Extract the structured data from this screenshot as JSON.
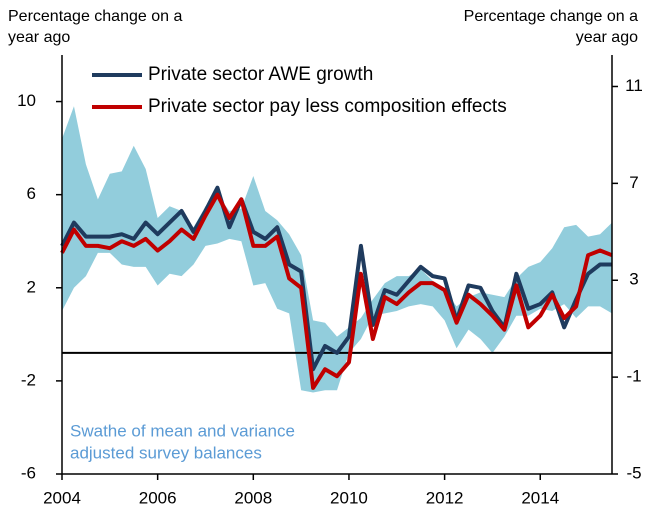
{
  "chart_data": {
    "type": "line",
    "ylabel": [
      "Percentage change on a",
      "year ago"
    ],
    "y2label": [
      "Percentage change on a",
      "year ago"
    ],
    "annotation": [
      "Swathe of mean and variance",
      "adjusted survey balances"
    ],
    "x": [
      2004,
      2004.25,
      2004.5,
      2004.75,
      2005,
      2005.25,
      2005.5,
      2005.75,
      2006,
      2006.25,
      2006.5,
      2006.75,
      2007,
      2007.25,
      2007.5,
      2007.75,
      2008,
      2008.25,
      2008.5,
      2008.75,
      2009,
      2009.25,
      2009.5,
      2009.75,
      2010,
      2010.25,
      2010.5,
      2010.75,
      2011,
      2011.25,
      2011.5,
      2011.75,
      2012,
      2012.25,
      2012.5,
      2012.75,
      2013,
      2013.25,
      2013.5,
      2013.75,
      2014,
      2014.25,
      2014.5,
      2014.75,
      2015,
      2015.25,
      2015.5
    ],
    "band": {
      "color": "#92cddc",
      "high": [
        8.4,
        9.8,
        7.3,
        5.8,
        6.9,
        7.0,
        8.1,
        7.1,
        5.0,
        5.5,
        5.3,
        4.6,
        5.5,
        6.0,
        5.3,
        5.4,
        6.8,
        5.3,
        4.9,
        4.3,
        3.4,
        0.6,
        0.5,
        -0.1,
        0.3,
        0.7,
        1.5,
        2.2,
        2.5,
        2.5,
        2.8,
        2.3,
        1.9,
        1.2,
        1.6,
        1.8,
        1.7,
        1.6,
        2.4,
        2.9,
        3.1,
        3.7,
        4.6,
        4.7,
        4.2,
        4.3,
        4.8
      ],
      "low": [
        1.0,
        2.0,
        2.5,
        3.5,
        3.5,
        3.0,
        2.9,
        2.9,
        2.1,
        2.6,
        2.5,
        3.0,
        3.8,
        3.9,
        4.1,
        4.0,
        2.1,
        2.2,
        1.1,
        0.9,
        -2.4,
        -2.5,
        -2.4,
        -2.4,
        -0.8,
        -0.2,
        0.8,
        0.9,
        1.0,
        1.2,
        1.3,
        1.2,
        0.6,
        -0.6,
        0.2,
        -0.2,
        -0.8,
        -0.1,
        0.8,
        0.8,
        1.1,
        1.0,
        1.3,
        0.7,
        1.2,
        1.2,
        0.9
      ]
    },
    "series": [
      {
        "name": "Private sector AWE growth",
        "color": "#1f3b5e",
        "values": [
          3.8,
          4.8,
          4.2,
          4.2,
          4.2,
          4.3,
          4.1,
          4.8,
          4.3,
          4.8,
          5.3,
          4.4,
          5.3,
          6.3,
          4.6,
          5.8,
          4.4,
          4.1,
          4.6,
          3.0,
          2.7,
          -1.5,
          -0.5,
          -0.8,
          -0.1,
          3.8,
          0.4,
          1.9,
          1.7,
          2.3,
          2.9,
          2.5,
          2.4,
          0.6,
          2.1,
          2.0,
          1.0,
          0.3,
          2.6,
          1.1,
          1.3,
          1.8,
          0.3,
          1.5,
          2.6,
          3.0,
          3.0
        ]
      },
      {
        "name": "Private sector pay less composition effects",
        "color": "#c00000",
        "values": [
          3.5,
          4.5,
          3.8,
          3.8,
          3.7,
          4.0,
          3.8,
          4.1,
          3.6,
          4.0,
          4.5,
          4.1,
          5.1,
          6.0,
          5.0,
          5.8,
          3.8,
          3.8,
          4.2,
          2.4,
          2.0,
          -2.3,
          -1.5,
          -1.8,
          -1.2,
          2.6,
          -0.2,
          1.6,
          1.3,
          1.8,
          2.2,
          2.2,
          1.9,
          0.5,
          1.7,
          1.3,
          0.8,
          0.2,
          2.1,
          0.3,
          0.8,
          1.7,
          0.7,
          1.2,
          3.4,
          3.6,
          3.4
        ]
      }
    ],
    "hline": {
      "axis": "y2",
      "value": 0
    },
    "xlim": [
      2004,
      2015.5
    ],
    "xticks": [
      2004,
      2006,
      2008,
      2010,
      2012,
      2014
    ],
    "ylim": [
      -6,
      12
    ],
    "yticks": [
      -6,
      -2,
      2,
      6,
      10
    ],
    "y2lim": [
      -5,
      12.3
    ],
    "y2ticks": [
      -5,
      -1,
      3,
      7,
      11
    ],
    "legend": "top-left"
  }
}
